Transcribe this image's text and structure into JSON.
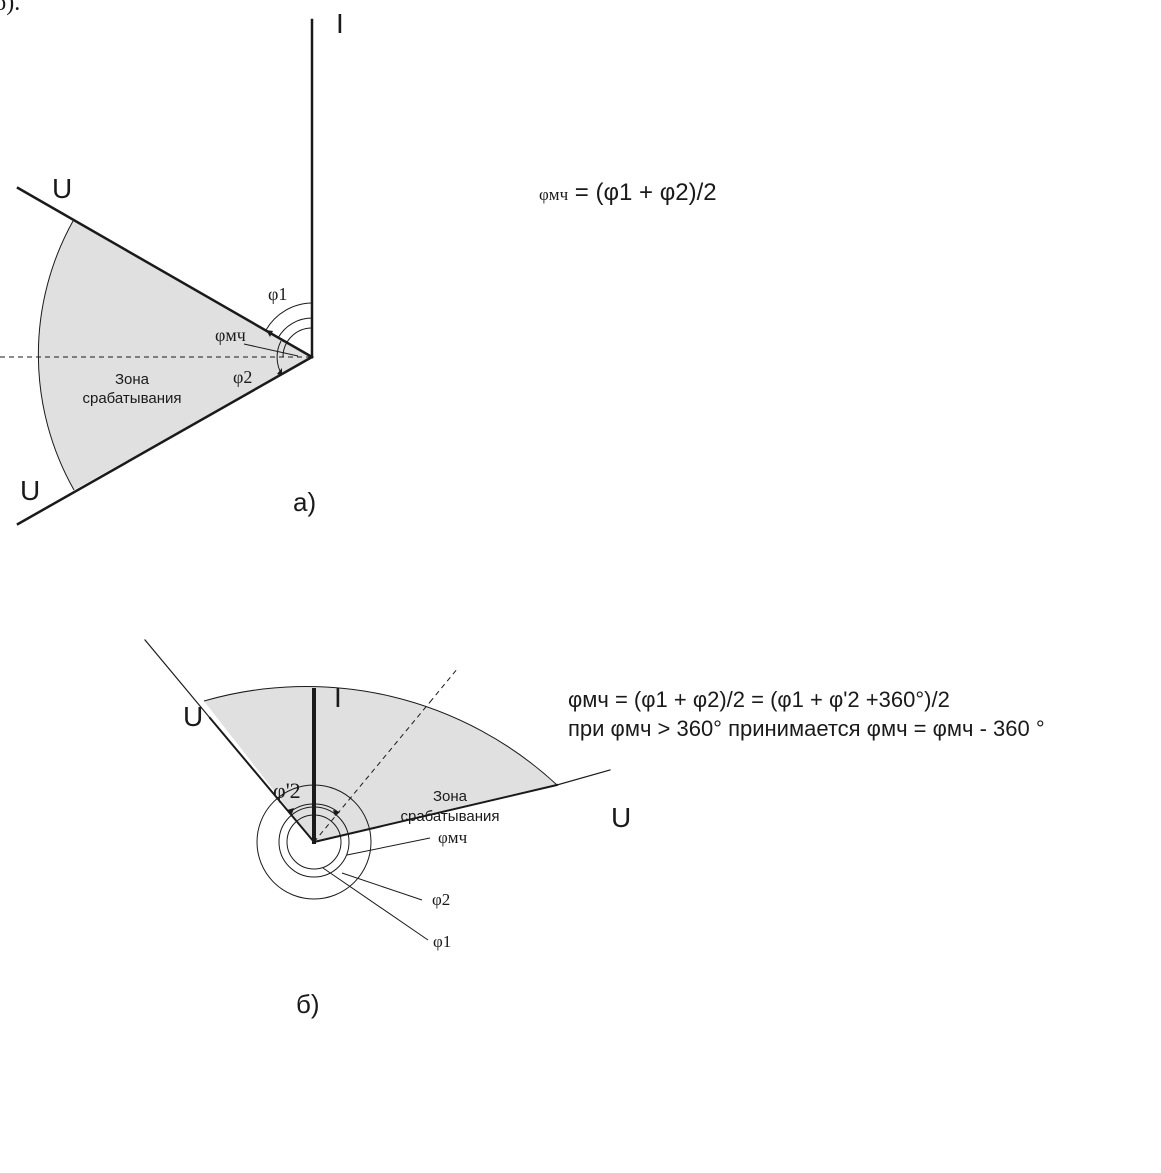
{
  "top_fragment": "б).",
  "diagram_a": {
    "label_I": "I",
    "label_U_top": "U",
    "label_U_bottom": "U",
    "phi1": "φ1",
    "phi_mch": "φмч",
    "phi2": "φ2",
    "zone_line1": "Зона",
    "zone_line2": "срабатывания",
    "caption": "а)",
    "formula_phi": "φмч",
    "formula_rest": " = (φ1 + φ2)/2"
  },
  "diagram_b": {
    "label_I": "I",
    "label_U_left": "U",
    "label_U_right": "U",
    "phi2_prime": "φ'2",
    "phi_mch": "φмч",
    "phi2": "φ2",
    "phi1": "φ1",
    "zone_line1": "Зона",
    "zone_line2": "срабатывания",
    "caption": "б)",
    "formula_line1": "φмч = (φ1 + φ2)/2 = (φ1 + φ'2 +360°)/2",
    "formula_line2": "при φмч > 360° принимается φмч = φмч - 360 °"
  }
}
